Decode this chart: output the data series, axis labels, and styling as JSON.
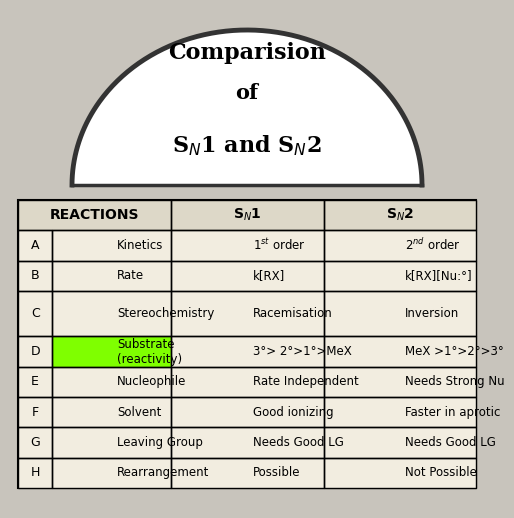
{
  "title_line1": "Comparision",
  "title_line2": "of",
  "title_line3": "S$_N$1 and S$_N$2",
  "header_col12": "REACTIONS",
  "header_col3": "S$_N$1",
  "header_col4": "S$_N$2",
  "rows": [
    [
      "A",
      "Kinetics",
      "1$^{st}$ order",
      "2$^{nd}$ order"
    ],
    [
      "B",
      "Rate",
      "k[RX]",
      "k[RX][Nu:°]"
    ],
    [
      "C",
      "Stereochemistry",
      "Racemisation",
      "Inversion"
    ],
    [
      "D",
      "Substrate\n(reactivity)",
      "3°> 2°>1°>MeX",
      "MeX >1°>2°>3°"
    ],
    [
      "E",
      "Nucleophile",
      "Rate Independent",
      "Needs Strong Nu"
    ],
    [
      "F",
      "Solvent",
      "Good ionizing",
      "Faster in aprotic"
    ],
    [
      "G",
      "Leaving Group",
      "Needs Good LG",
      "Needs Good LG"
    ],
    [
      "H",
      "Rearrangement",
      "Possible",
      "Not Possible"
    ]
  ],
  "highlight_row": 3,
  "highlight_color": "#7FFF00",
  "bg_color": "#c8c4bc",
  "table_bg": "#f2ede0",
  "border_color": "#000000"
}
